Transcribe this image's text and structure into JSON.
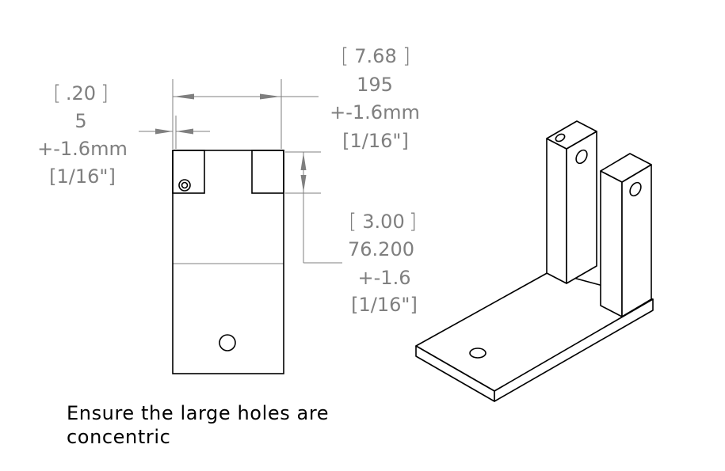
{
  "dim_width_overall": {
    "inch_value": "7.68",
    "mm_value": "195",
    "tolerance": "+-1.6mm",
    "inch_tolerance": "[1/16\"]"
  },
  "dim_offset": {
    "inch_value": ".20",
    "mm_value": "5",
    "tolerance": "+-1.6mm",
    "inch_tolerance": "[1/16\"]"
  },
  "dim_height": {
    "inch_value": "3.00",
    "mm_value": "76.200",
    "tolerance": "+-1.6",
    "inch_tolerance": "[1/16\"]"
  },
  "note": {
    "line1": "Ensure the large holes are",
    "line2": "concentric"
  },
  "colors": {
    "dimension": "#7f7f7f",
    "geometry": "#000000",
    "background": "#ffffff"
  }
}
